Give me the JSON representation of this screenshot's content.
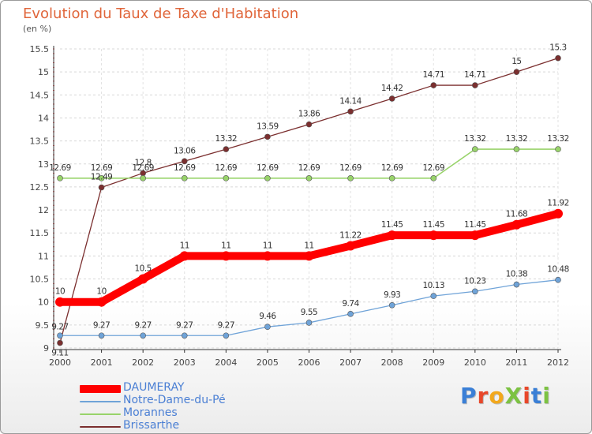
{
  "header": {
    "title": "Evolution du Taux de Taxe d'Habitation",
    "subtitle": "(en %)"
  },
  "logo": {
    "text": "ProXiti",
    "letter_colors": [
      "#3a7fd6",
      "#e8472a",
      "#f2a81d",
      "#7cc242",
      "#e8472a",
      "#3a7fd6",
      "#7cc242"
    ]
  },
  "chart_data": {
    "type": "line",
    "title": "Evolution du Taux de Taxe d'Habitation",
    "subtitle": "(en %)",
    "x": [
      "2000",
      "2001",
      "2002",
      "2003",
      "2004",
      "2005",
      "2006",
      "2007",
      "2008",
      "2009",
      "2010",
      "2011",
      "2012"
    ],
    "ylim": [
      9,
      15.5
    ],
    "yticks": [
      "9",
      "9.5",
      "10",
      "10.5",
      "11",
      "11.5",
      "12",
      "12.5",
      "13",
      "13.5",
      "14",
      "14.5",
      "15",
      "15.5"
    ],
    "grid": "horizontal",
    "legend_position": "bottom-left",
    "series": [
      {
        "name": "DAUMERAY",
        "color": "#ff0000",
        "values": [
          10,
          10,
          10.5,
          11,
          11,
          11,
          11,
          11.22,
          11.45,
          11.45,
          11.45,
          11.68,
          11.92
        ],
        "labels": [
          "10",
          "10",
          "10.5",
          "11",
          "11",
          "11",
          "11",
          "11.22",
          "11.45",
          "11.45",
          "11.45",
          "11.68",
          "11.92"
        ]
      },
      {
        "name": "Notre-Dame-du-Pé",
        "color": "#6fa3d8",
        "values": [
          9.27,
          9.27,
          9.27,
          9.27,
          9.27,
          9.46,
          9.55,
          9.74,
          9.93,
          10.13,
          10.23,
          10.38,
          10.48
        ],
        "labels": [
          "9.27",
          "9.27",
          "9.27",
          "9.27",
          "9.27",
          "9.46",
          "9.55",
          "9.74",
          "9.93",
          "10.13",
          "10.23",
          "10.38",
          "10.48"
        ]
      },
      {
        "name": "Morannes",
        "color": "#98d36a",
        "values": [
          12.69,
          12.69,
          12.69,
          12.69,
          12.69,
          12.69,
          12.69,
          12.69,
          12.69,
          12.69,
          13.32,
          13.32,
          13.32
        ],
        "labels": [
          "12.69",
          "12.69",
          "12.69",
          "12.69",
          "12.69",
          "12.69",
          "12.69",
          "12.69",
          "12.69",
          "12.69",
          "13.32",
          "13.32",
          "13.32"
        ]
      },
      {
        "name": "Brissarthe",
        "color": "#7b2f2f",
        "values": [
          9.11,
          12.49,
          12.8,
          13.06,
          13.32,
          13.59,
          13.86,
          14.14,
          14.42,
          14.71,
          14.71,
          15,
          15.3
        ],
        "labels": [
          "9.11",
          "12.49",
          "12.8",
          "13.06",
          "13.32",
          "13.59",
          "13.86",
          "14.14",
          "14.42",
          "14.71",
          "14.71",
          "15",
          "15.3"
        ]
      }
    ]
  }
}
